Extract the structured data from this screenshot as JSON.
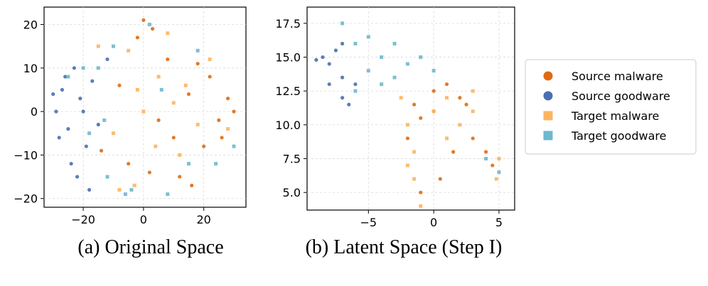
{
  "colors": {
    "source_malware": "#e06b12",
    "source_goodware": "#4a6fb0",
    "target_malware": "#fbb563",
    "target_goodware": "#6fb8cf",
    "grid": "#d9d9d9"
  },
  "legend": {
    "items": [
      {
        "label": "Source malware",
        "marker": "circle",
        "color": "#e06b12"
      },
      {
        "label": "Source goodware",
        "marker": "circle",
        "color": "#4a6fb0"
      },
      {
        "label": "Target malware",
        "marker": "square",
        "color": "#fbb563"
      },
      {
        "label": "Target goodware",
        "marker": "square",
        "color": "#6fb8cf"
      }
    ]
  },
  "chart_data": [
    {
      "type": "scatter",
      "caption": "(a) Original Space",
      "xlim": [
        -33,
        34
      ],
      "ylim": [
        -22,
        24
      ],
      "xticks": [
        -20,
        0,
        20
      ],
      "xtick_labels": [
        "−20",
        "0",
        "20"
      ],
      "yticks": [
        20,
        10,
        0,
        -10,
        -20
      ],
      "ytick_labels": [
        "20",
        "10",
        "0",
        "−10",
        "−20"
      ],
      "grid": true,
      "series": [
        {
          "name": "Source malware",
          "values": [
            [
              0,
              21
            ],
            [
              3,
              19
            ],
            [
              -2,
              17
            ],
            [
              18,
              11
            ],
            [
              22,
              8
            ],
            [
              28,
              3
            ],
            [
              25,
              -2
            ],
            [
              15,
              4
            ],
            [
              10,
              -6
            ],
            [
              -5,
              -12
            ],
            [
              2,
              -14
            ],
            [
              12,
              -15
            ],
            [
              20,
              -8
            ],
            [
              26,
              -6
            ],
            [
              8,
              12
            ],
            [
              -8,
              6
            ],
            [
              5,
              -2
            ],
            [
              30,
              0
            ],
            [
              -14,
              -9
            ],
            [
              16,
              -17
            ]
          ]
        },
        {
          "name": "Source goodware",
          "values": [
            [
              -29,
              0
            ],
            [
              -27,
              5
            ],
            [
              -25,
              -4
            ],
            [
              -23,
              10
            ],
            [
              -21,
              3
            ],
            [
              -19,
              -8
            ],
            [
              -24,
              -12
            ],
            [
              -17,
              7
            ],
            [
              -28,
              -6
            ],
            [
              -15,
              -3
            ],
            [
              -26,
              8
            ],
            [
              -20,
              0
            ],
            [
              -22,
              -15
            ],
            [
              -12,
              12
            ],
            [
              -30,
              4
            ],
            [
              -18,
              -18
            ]
          ]
        },
        {
          "name": "Target malware",
          "values": [
            [
              -5,
              14
            ],
            [
              5,
              8
            ],
            [
              -10,
              -5
            ],
            [
              12,
              -10
            ],
            [
              0,
              0
            ],
            [
              18,
              -3
            ],
            [
              -3,
              -17
            ],
            [
              8,
              18
            ],
            [
              22,
              12
            ],
            [
              -15,
              15
            ],
            [
              4,
              -8
            ],
            [
              -8,
              -18
            ],
            [
              14,
              6
            ],
            [
              28,
              -4
            ],
            [
              -2,
              5
            ],
            [
              10,
              2
            ]
          ]
        },
        {
          "name": "Target goodware",
          "values": [
            [
              -12,
              -15
            ],
            [
              -15,
              10
            ],
            [
              -18,
              -5
            ],
            [
              -10,
              15
            ],
            [
              -20,
              10
            ],
            [
              -6,
              -19
            ],
            [
              -4,
              -18
            ],
            [
              6,
              5
            ],
            [
              18,
              14
            ],
            [
              24,
              -12
            ],
            [
              -25,
              8
            ],
            [
              15,
              -12
            ],
            [
              8,
              -19
            ],
            [
              -13,
              -2
            ],
            [
              30,
              -8
            ],
            [
              2,
              20
            ]
          ]
        }
      ]
    },
    {
      "type": "scatter",
      "caption": "(b) Latent Space (Step I)",
      "xlim": [
        -9.7,
        6.2
      ],
      "ylim": [
        3.7,
        18.7
      ],
      "xticks": [
        -5,
        0,
        5
      ],
      "xtick_labels": [
        "−5",
        "0",
        "5"
      ],
      "yticks": [
        17.5,
        15.0,
        12.5,
        10.0,
        7.5,
        5.0
      ],
      "ytick_labels": [
        "17.5",
        "15.0",
        "12.5",
        "10.0",
        "7.5",
        "5.0"
      ],
      "grid": true,
      "series": [
        {
          "name": "Source malware",
          "values": [
            [
              1,
              13
            ],
            [
              2,
              12
            ],
            [
              0,
              11
            ],
            [
              -1,
              10.5
            ],
            [
              3,
              9
            ],
            [
              4,
              8
            ],
            [
              -2,
              9
            ],
            [
              1.5,
              8
            ],
            [
              0.5,
              6
            ],
            [
              -1,
              5
            ],
            [
              4.5,
              7
            ],
            [
              2.5,
              11.5
            ],
            [
              -1.5,
              11.5
            ],
            [
              0,
              12.5
            ]
          ]
        },
        {
          "name": "Source goodware",
          "values": [
            [
              -8.5,
              15
            ],
            [
              -8,
              14.5
            ],
            [
              -7.5,
              15.5
            ],
            [
              -7,
              13.5
            ],
            [
              -7,
              12
            ],
            [
              -6.5,
              11.5
            ],
            [
              -8,
              13
            ],
            [
              -6,
              13
            ],
            [
              -7,
              16
            ],
            [
              -9,
              14.8
            ]
          ]
        },
        {
          "name": "Target malware",
          "values": [
            [
              0,
              11
            ],
            [
              -2,
              10
            ],
            [
              1,
              9
            ],
            [
              2,
              10
            ],
            [
              3,
              11
            ],
            [
              -1.5,
              8
            ],
            [
              -2,
              7
            ],
            [
              -1.5,
              6
            ],
            [
              -1,
              4
            ],
            [
              4.8,
              6
            ],
            [
              5,
              7.5
            ],
            [
              1,
              12
            ],
            [
              -2.5,
              12
            ],
            [
              3,
              12.5
            ]
          ]
        },
        {
          "name": "Target goodware",
          "values": [
            [
              -7,
              17.5
            ],
            [
              -5,
              16.5
            ],
            [
              -3,
              16
            ],
            [
              -1,
              15
            ],
            [
              -5,
              14
            ],
            [
              -3,
              13.5
            ],
            [
              -6,
              12.5
            ],
            [
              -4,
              15
            ],
            [
              -2,
              14.5
            ],
            [
              0,
              14
            ],
            [
              -6,
              16
            ],
            [
              4,
              7.5
            ],
            [
              5,
              6.5
            ],
            [
              -4,
              13
            ]
          ]
        }
      ]
    }
  ]
}
